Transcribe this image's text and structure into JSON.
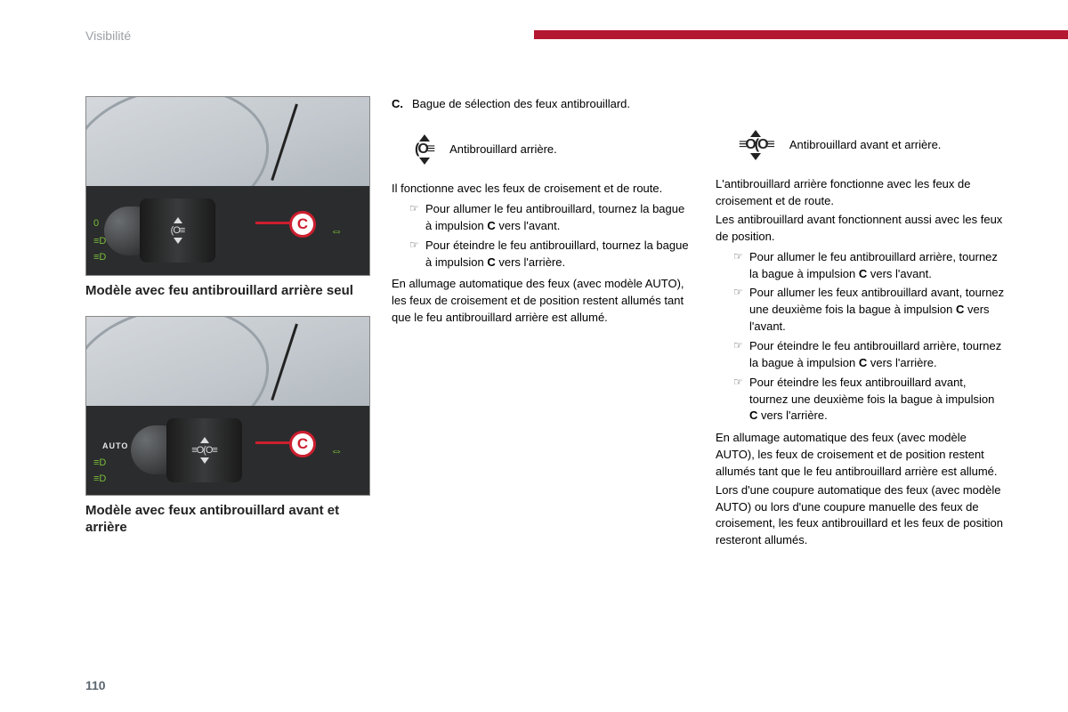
{
  "colors": {
    "accent_bar": "#b41730",
    "badge_ring": "#cc1f2f",
    "section_label": "#9aa0a6",
    "text": "#222222",
    "page_num": "#5c6670"
  },
  "header": {
    "section": "Visibilité",
    "page_number": "110"
  },
  "left": {
    "caption1": "Modèle avec feu antibrouillard arrière seul",
    "caption2": "Modèle avec feux antibrouillard avant et arrière",
    "badge": "C",
    "auto_label": "AUTO"
  },
  "mid": {
    "c_label": "C.",
    "c_text": "Bague de sélection des feux antibrouillard.",
    "icon_label": "Antibrouillard arrière.",
    "p1": "Il fonctionne avec les feux de croisement et de route.",
    "bullets": [
      "Pour allumer le feu antibrouillard, tournez la bague à impulsion C vers l'avant.",
      "Pour éteindre le feu antibrouillard, tournez la bague à impulsion C vers l'arrière."
    ],
    "p2": "En allumage automatique des feux (avec modèle AUTO), les feux de croisement et de position restent allumés tant que le feu antibrouillard arrière est allumé."
  },
  "right": {
    "icon_label": "Antibrouillard avant et arrière.",
    "p1": "L'antibrouillard arrière fonctionne avec les feux de croisement et de route.",
    "p2": "Les antibrouillard avant fonctionnent aussi avec les feux de position.",
    "bullets": [
      "Pour allumer le feu antibrouillard arrière, tournez la bague à impulsion C vers l'avant.",
      "Pour allumer les feux antibrouillard avant, tournez une deuxième fois la bague à impulsion C vers l'avant.",
      "Pour éteindre le feu antibrouillard arrière, tournez la bague à impulsion C vers l'arrière.",
      "Pour éteindre les feux antibrouillard avant, tournez une deuxième fois la bague à impulsion C vers l'arrière."
    ],
    "p3": "En allumage automatique des feux (avec modèle AUTO), les feux de croisement et de position restent allumés tant que le feu antibrouillard arrière est allumé.",
    "p4": "Lors d'une coupure automatique des feux (avec modèle AUTO) ou lors d'une coupure manuelle des feux de croisement, les feux antibrouillard et les feux de position resteront allumés."
  }
}
